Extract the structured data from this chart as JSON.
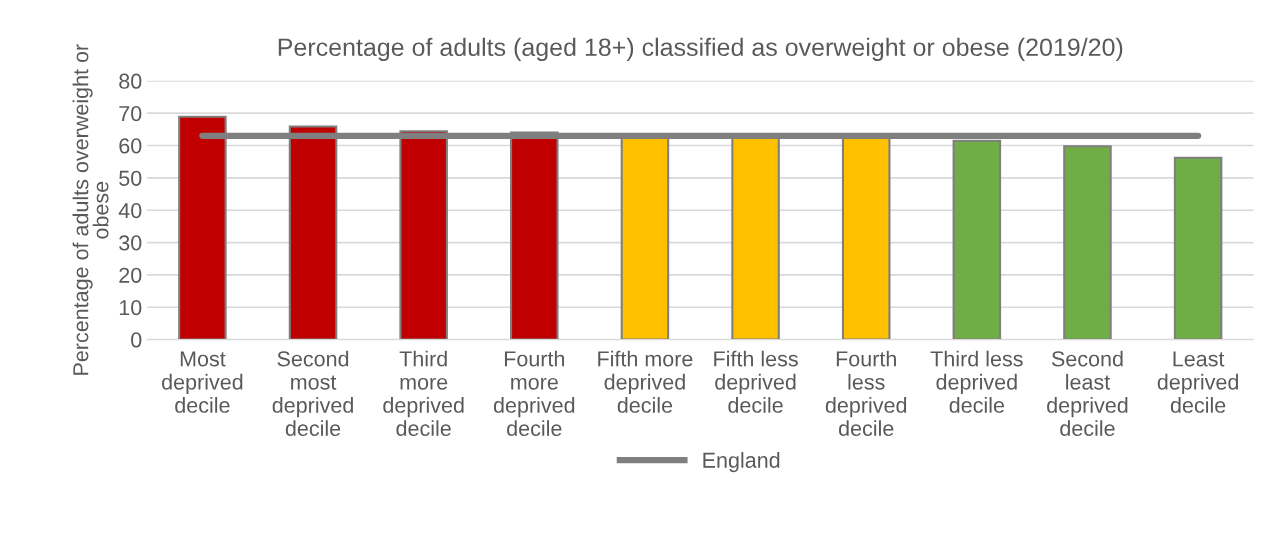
{
  "chart_data": {
    "type": "bar",
    "title": "Percentage of adults (aged 18+) classified as overweight or obese (2019/20)",
    "ylabel": "Percentage of adults overweight or obese",
    "categories": [
      "Most deprived decile",
      "Second most deprived decile",
      "Third more deprived decile",
      "Fourth more deprived decile",
      "Fifth more deprived decile",
      "Fifth less deprived decile",
      "Fourth less deprived decile",
      "Third less deprived decile",
      "Second least deprived decile",
      "Least deprived decile"
    ],
    "series": [
      {
        "colors": [
          "#c00000",
          "#c00000",
          "#c00000",
          "#c00000",
          "#ffc000",
          "#ffc000",
          "#ffc000",
          "#70ad47",
          "#70ad47",
          "#70ad47"
        ],
        "values": [
          68.9,
          65.9,
          64.4,
          64.0,
          62.6,
          62.4,
          62.4,
          61.5,
          59.8,
          56.2
        ]
      },
      {
        "type": "line",
        "name": "England",
        "color": "#7f7f7f",
        "values": [
          63,
          63,
          63,
          63,
          63,
          63,
          63,
          63,
          63,
          63
        ]
      }
    ],
    "ylim": [
      0,
      80
    ],
    "yticks": [
      0,
      10,
      20,
      30,
      40,
      50,
      60,
      70,
      80
    ],
    "grid": "y",
    "legend": "bottom"
  }
}
